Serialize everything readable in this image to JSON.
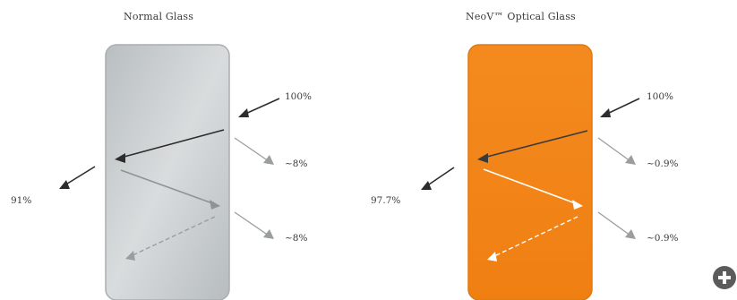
{
  "panels": [
    {
      "title": "Normal Glass",
      "incident_label": "100%",
      "reflection_1_label": "~8%",
      "reflection_2_label": "~8%",
      "transmitted_label": "91%",
      "glass_color": "#c9cdce"
    },
    {
      "title": "NeoV™ Optical Glass",
      "incident_label": "100%",
      "reflection_1_label": "~0.9%",
      "reflection_2_label": "~0.9%",
      "transmitted_label": "97.7%",
      "glass_color": "#f48a1f"
    }
  ],
  "add_button_icon": "plus-icon"
}
